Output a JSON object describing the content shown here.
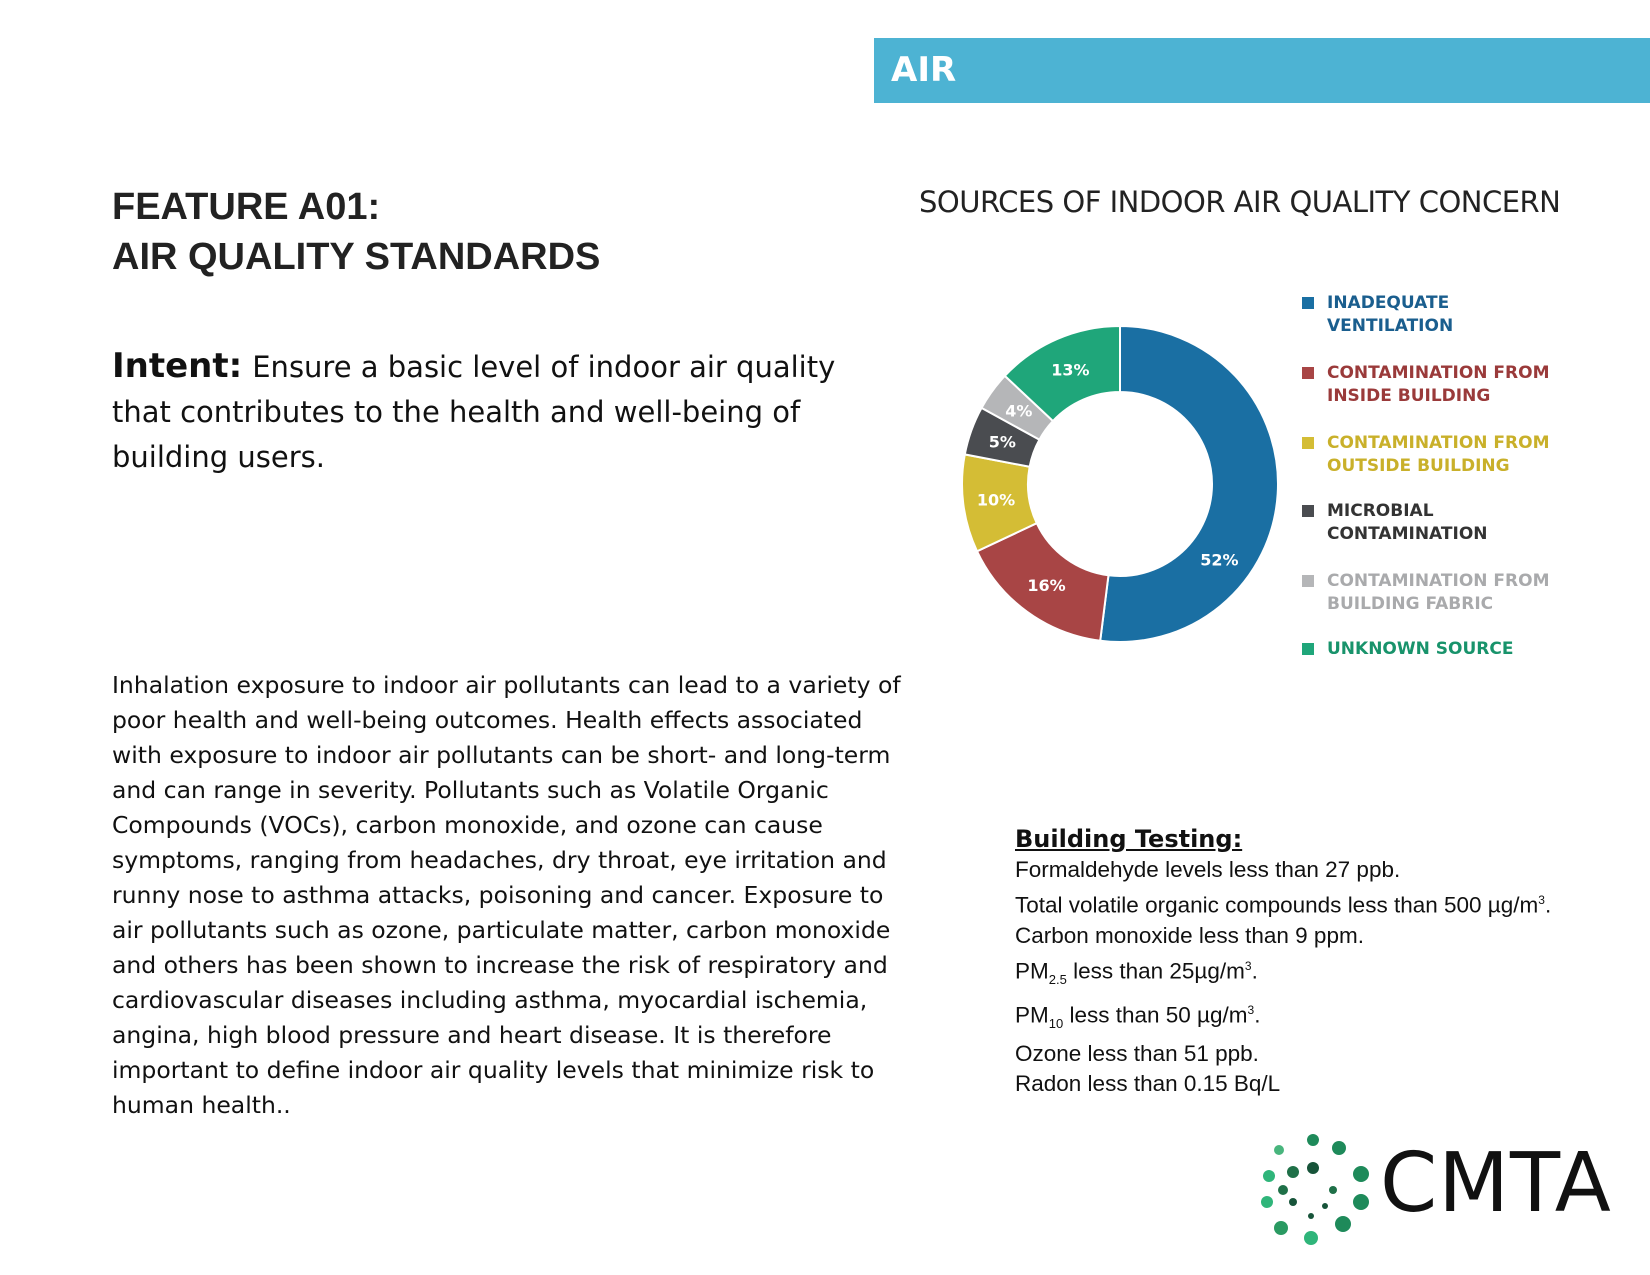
{
  "header": {
    "section": "AIR",
    "color": "#4db3d3"
  },
  "feature": {
    "title_line1": "FEATURE A01:",
    "title_line2": "AIR QUALITY STANDARDS"
  },
  "intent": {
    "label": "Intent:",
    "text": "Ensure a basic level of indoor air quality that contributes to the health and well-being of building users."
  },
  "body": "Inhalation exposure to indoor air pollutants can lead to a variety of poor health and well-being outcomes. Health effects associated with exposure to indoor air pollutants can be short- and long-term and can range in severity. Pollutants such as Volatile Organic Compounds (VOCs), carbon monoxide, and ozone can cause symptoms, ranging from headaches, dry throat, eye irritation and runny nose to asthma attacks, poisoning and cancer. Exposure to air pollutants such as ozone, particulate matter, carbon monoxide and others has been shown to increase the risk of respiratory and cardiovascular diseases including asthma, myocardial ischemia, angina, high blood pressure and heart disease. It is therefore important to define indoor air quality levels that minimize risk to human health..",
  "chart_data": {
    "type": "pie",
    "variant": "donut",
    "title": "SOURCES OF INDOOR AIR QUALITY CONCERN",
    "legend_position": "right",
    "categories": [
      "INADEQUATE VENTILATION",
      "CONTAMINATION FROM INSIDE BUILDING",
      "CONTAMINATION FROM OUTSIDE BUILDING",
      "MICROBIAL CONTAMINATION",
      "CONTAMINATION FROM BUILDING FABRIC",
      "UNKNOWN SOURCE"
    ],
    "values": [
      52,
      16,
      10,
      5,
      4,
      13
    ],
    "data_labels": [
      "52%",
      "16%",
      "10%",
      "5%",
      "4%",
      "13%"
    ],
    "colors": [
      "#1a6fa3",
      "#a84545",
      "#d4bd35",
      "#4a4c50",
      "#b5b6b8",
      "#1fa67a"
    ],
    "legend_text_colors": [
      "#1a5e8e",
      "#9a3a3a",
      "#c9b02a",
      "#333333",
      "#a9aaac",
      "#18936b"
    ]
  },
  "building_testing": {
    "heading": "Building Testing:",
    "items": [
      {
        "text": "Formaldehyde levels less than 27 ppb."
      },
      {
        "text": "Total volatile organic compounds less than 500 µg/m",
        "sup": "3",
        "after": "."
      },
      {
        "text": "Carbon monoxide less than 9 ppm."
      },
      {
        "pre": "PM",
        "sub": "2.5",
        "text": " less than 25µg/m",
        "sup": "3",
        "after": "."
      },
      {
        "pre": "PM",
        "sub": "10",
        "text": " less than 50 µg/m",
        "sup": "3",
        "after": "."
      },
      {
        "text": "Ozone less than 51 ppb."
      },
      {
        "text": "Radon less than 0.15 Bq/L"
      }
    ]
  },
  "logo": {
    "text": "CMTA"
  }
}
